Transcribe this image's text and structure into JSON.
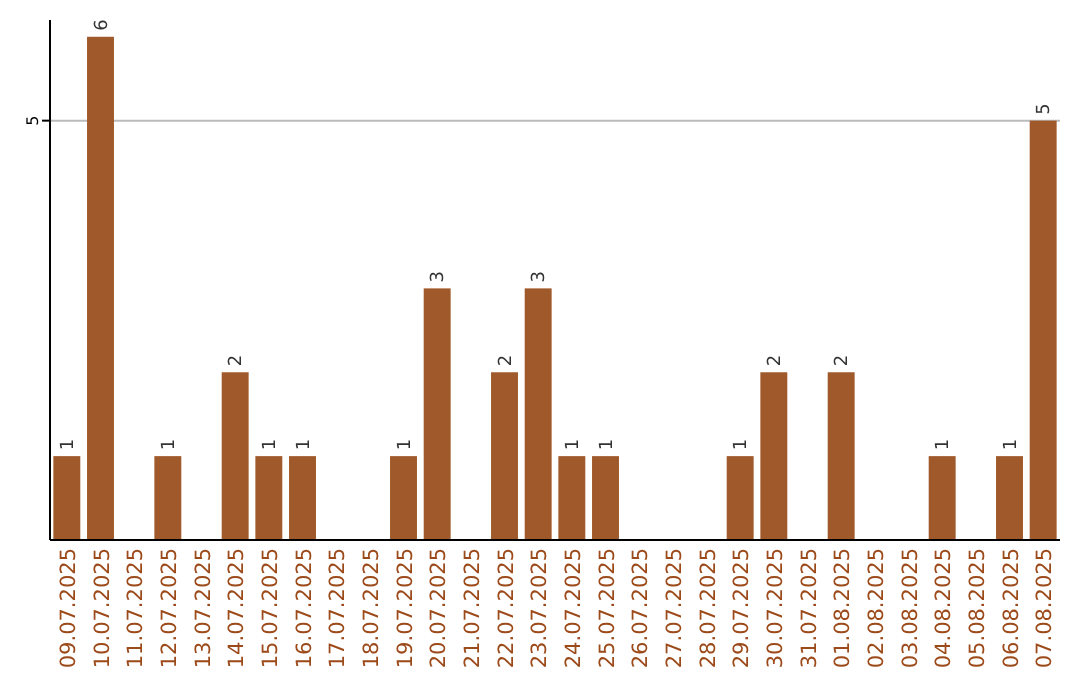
{
  "chart_data": {
    "type": "bar",
    "categories": [
      "09.07.2025",
      "10.07.2025",
      "11.07.2025",
      "12.07.2025",
      "13.07.2025",
      "14.07.2025",
      "15.07.2025",
      "16.07.2025",
      "17.07.2025",
      "18.07.2025",
      "19.07.2025",
      "20.07.2025",
      "21.07.2025",
      "22.07.2025",
      "23.07.2025",
      "24.07.2025",
      "25.07.2025",
      "26.07.2025",
      "27.07.2025",
      "28.07.2025",
      "29.07.2025",
      "30.07.2025",
      "31.07.2025",
      "01.08.2025",
      "02.08.2025",
      "03.08.2025",
      "04.08.2025",
      "05.08.2025",
      "06.08.2025",
      "07.08.2025"
    ],
    "values": [
      1,
      6,
      null,
      1,
      null,
      2,
      1,
      1,
      null,
      null,
      1,
      3,
      null,
      2,
      3,
      1,
      1,
      null,
      null,
      null,
      1,
      2,
      null,
      2,
      null,
      null,
      1,
      null,
      1,
      5
    ],
    "color": "#a0592a",
    "ylim": [
      0,
      6.2
    ],
    "yticks": [
      5
    ],
    "grid": "y",
    "data_labels": true
  }
}
